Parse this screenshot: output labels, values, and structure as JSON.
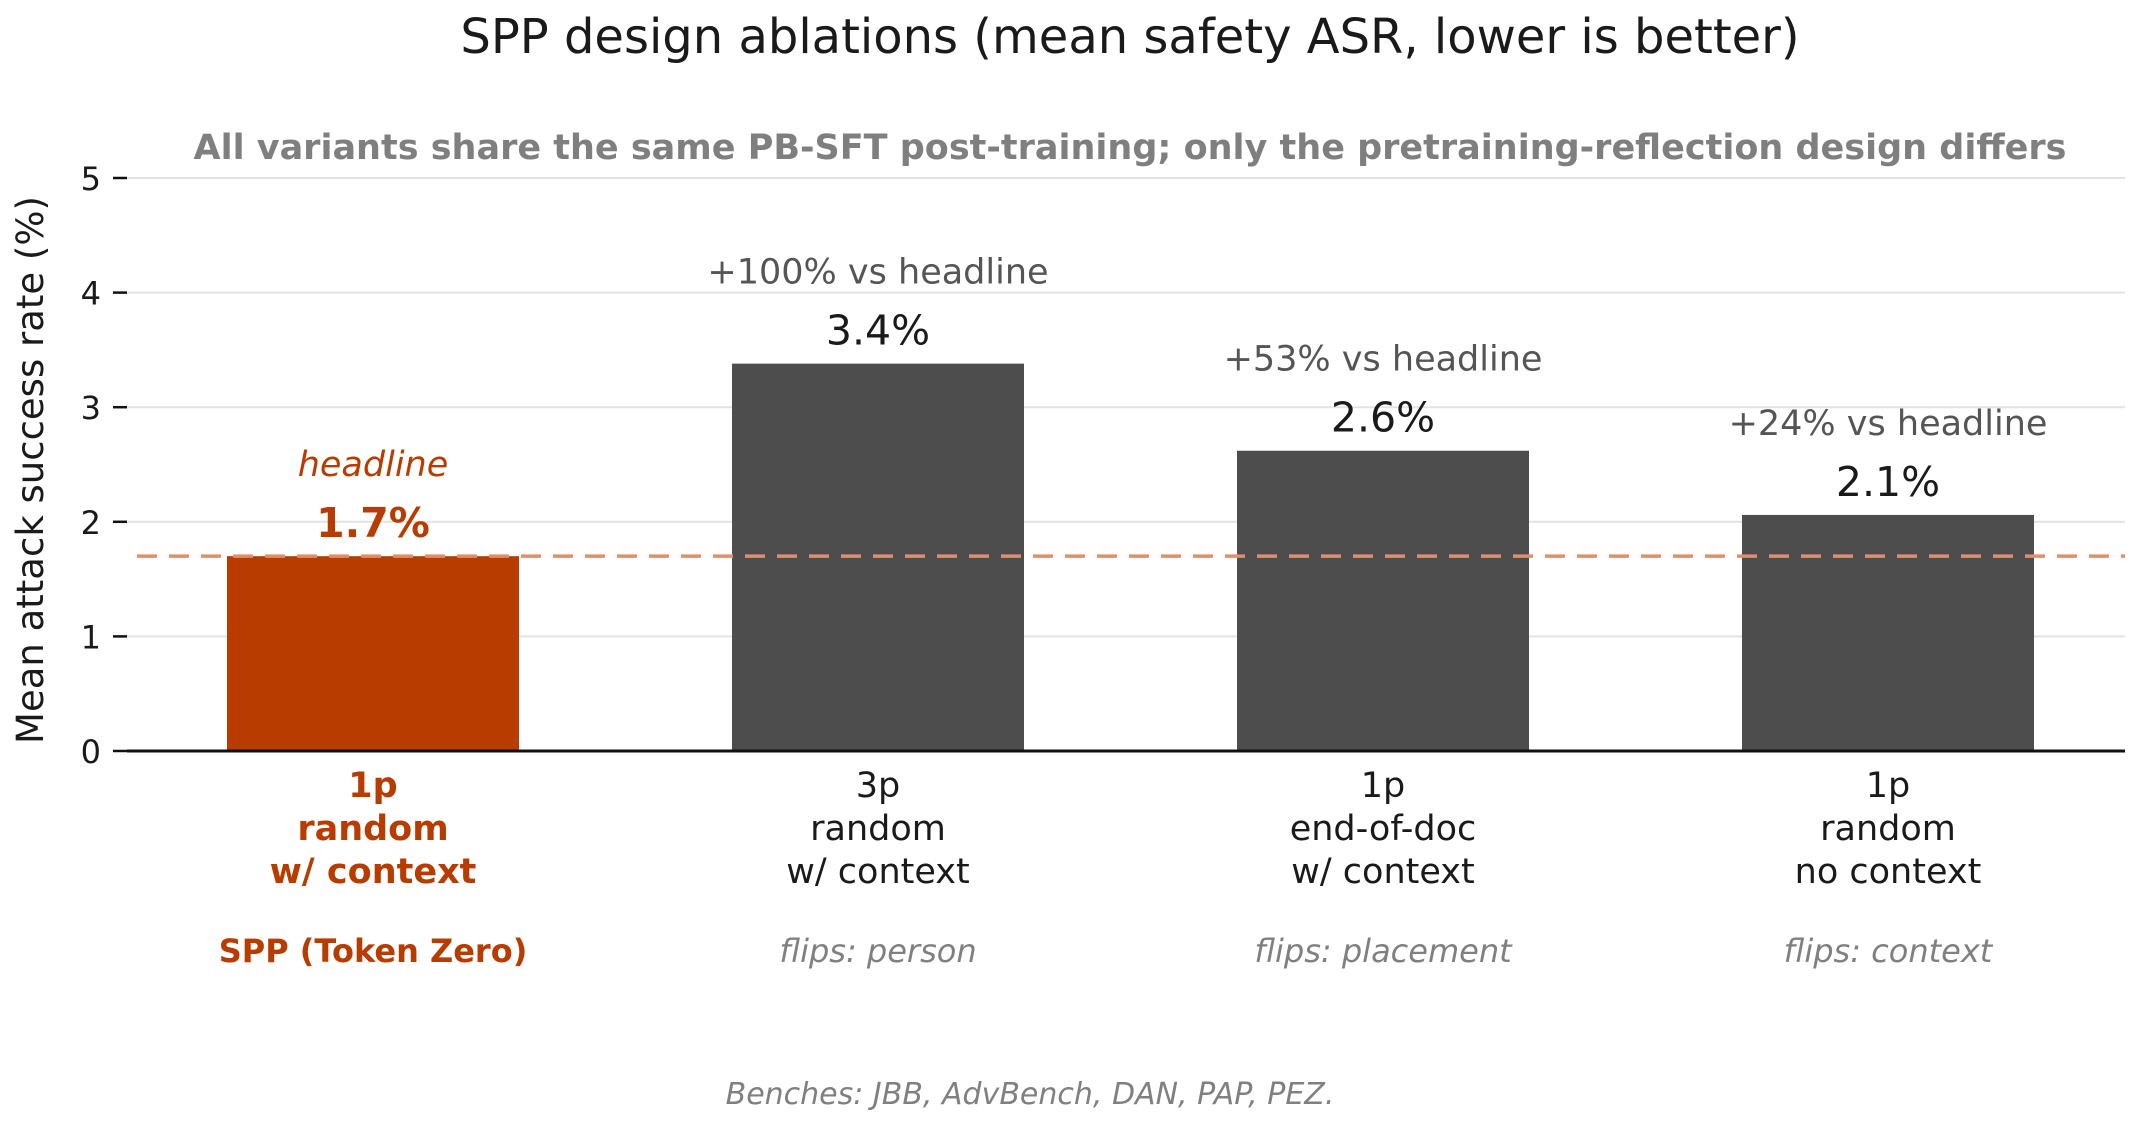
{
  "chart_data": {
    "type": "bar",
    "title": "SPP design ablations (mean safety ASR, lower is better)",
    "subtitle": "All variants share the same PB-SFT post-training; only the pretraining-reflection design differs",
    "ylabel": "Mean attack success rate (%)",
    "ylim": [
      0,
      5
    ],
    "yticks": [
      "0",
      "1",
      "2",
      "3",
      "4",
      "5"
    ],
    "grid": true,
    "reference_line": {
      "value": 1.7,
      "style": "dashed"
    },
    "categories": [
      [
        "1p",
        "random",
        "w/ context"
      ],
      [
        "3p",
        "random",
        "w/ context"
      ],
      [
        "1p",
        "end-of-doc",
        "w/ context"
      ],
      [
        "1p",
        "random",
        "no context"
      ]
    ],
    "values": [
      1.7,
      3.38,
      2.62,
      2.06
    ],
    "value_labels": [
      "1.7%",
      "3.4%",
      "2.6%",
      "2.1%"
    ],
    "annotations": [
      "headline",
      "+100% vs headline",
      "+53% vs headline",
      "+24% vs headline"
    ],
    "notes": [
      "SPP (Token Zero)",
      "flips: person",
      "flips: placement",
      "flips: context"
    ],
    "highlight_index": 0,
    "colors": {
      "highlight": "#b83c00",
      "bar": "#4d4d4d",
      "reference": "#e08f6b",
      "grid": "#e3e3e3",
      "axis": "#111111"
    },
    "footer": "Benches: JBB, AdvBench, DAN, PAP, PEZ."
  }
}
